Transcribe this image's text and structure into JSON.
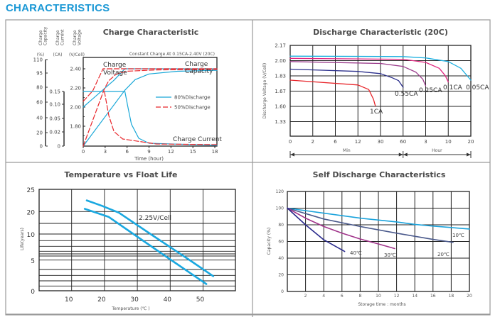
{
  "page": {
    "title": "CHARACTERISTICS",
    "accent": "#1b98d5"
  },
  "chart_data": [
    {
      "type": "line",
      "title": "Charge Characteristic",
      "annotation": "Constant Charge At 0.15CA-2.40V  (20C)",
      "xlabel": "Time (hour)",
      "xlim": [
        0,
        18.3
      ],
      "x_ticks": [
        0,
        3,
        6,
        9,
        12,
        15,
        18
      ],
      "axes": [
        {
          "id": "capacity",
          "header": "Charge Capacity",
          "unit": "(%)",
          "ticks": [
            110,
            95,
            80,
            60,
            40,
            20,
            0
          ]
        },
        {
          "id": "current",
          "header": "Charge Current",
          "unit": "(CA)",
          "ticks": [
            "0.15",
            "0.10",
            "0.05",
            "0.02",
            "0"
          ]
        },
        {
          "id": "voltage",
          "header": "Charge Voltage",
          "unit": "(V/Cell)",
          "ticks": [
            "2.40",
            "2.20",
            "2.00",
            "1.80"
          ]
        }
      ],
      "curve_labels": {
        "voltage": "Charge Voltage",
        "capacity": "Charge Capacity",
        "current": "Charge Current"
      },
      "legend": [
        {
          "name": "80%Discharge",
          "color": "#1aa8d8",
          "dash": false
        },
        {
          "name": "50%Discharge",
          "color": "#e8262b",
          "dash": true
        }
      ],
      "series": [
        {
          "group": "80%Discharge",
          "axis": "voltage",
          "points": [
            [
              0,
              2.0
            ],
            [
              2.7,
              2.18
            ],
            [
              4.2,
              2.28
            ],
            [
              5.7,
              2.4
            ],
            [
              18.3,
              2.4
            ]
          ]
        },
        {
          "group": "80%Discharge",
          "axis": "current",
          "points": [
            [
              0,
              0.15
            ],
            [
              5.7,
              0.15
            ],
            [
              6.1,
              0.092
            ],
            [
              6.6,
              0.037
            ],
            [
              7.6,
              0.011
            ],
            [
              9.0,
              0.004
            ],
            [
              18.3,
              0.001
            ]
          ]
        },
        {
          "group": "80%Discharge",
          "axis": "capacity",
          "points": [
            [
              0,
              0
            ],
            [
              5.7,
              76
            ],
            [
              7.1,
              88
            ],
            [
              9.0,
              94
            ],
            [
              12.9,
              97
            ],
            [
              18.3,
              98
            ]
          ]
        },
        {
          "group": "50%Discharge",
          "axis": "voltage",
          "points": [
            [
              0,
              2.06
            ],
            [
              1.3,
              2.17
            ],
            [
              2.7,
              2.4
            ],
            [
              18.3,
              2.4
            ]
          ]
        },
        {
          "group": "50%Discharge",
          "axis": "capacity",
          "points": [
            [
              0,
              0
            ],
            [
              2.9,
              78
            ],
            [
              3.5,
              87
            ],
            [
              4.5,
              93.7
            ],
            [
              5.8,
              97
            ],
            [
              10,
              98.5
            ],
            [
              18.3,
              99
            ]
          ]
        },
        {
          "group": "50%Discharge",
          "axis": "current",
          "points": [
            [
              2.9,
              0.15
            ],
            [
              3.5,
              0.06
            ],
            [
              4.2,
              0.021
            ],
            [
              5.4,
              0.01
            ],
            [
              10,
              0.003
            ],
            [
              18.3,
              0.002
            ]
          ]
        }
      ]
    },
    {
      "type": "line",
      "title": "Discharge Characteristic (20C)",
      "ylabel": "Discharge Voltage (V/Cell)",
      "x_tick_labels": [
        "0",
        "2",
        "6",
        "12",
        "30",
        "60",
        "3",
        "10",
        "20"
      ],
      "x_tick_minutes": [
        0,
        2,
        6,
        12,
        30,
        60,
        180,
        600,
        1200
      ],
      "x_ranges": [
        {
          "label": "Min"
        },
        {
          "label": "Hour"
        }
      ],
      "y_ticks": [
        "2.17",
        "2.00",
        "1.83",
        "1.67",
        "1.60",
        "1.33"
      ],
      "grid": true,
      "series": [
        {
          "name": "1CA",
          "color": "#e8262b",
          "points": [
            [
              0,
              1.785
            ],
            [
              12,
              1.735
            ],
            [
              20.6,
              1.687
            ],
            [
              24.4,
              1.633
            ],
            [
              25.9,
              1.602
            ]
          ]
        },
        {
          "name": "0.55CA",
          "color": "#2b2f8c",
          "points": [
            [
              0,
              1.905
            ],
            [
              12,
              1.88
            ],
            [
              30,
              1.855
            ],
            [
              45.6,
              1.81
            ],
            [
              54,
              1.78
            ],
            [
              60,
              1.71
            ]
          ]
        },
        {
          "name": "0.25CA",
          "color": "#9b3d8c",
          "points": [
            [
              0,
              1.99
            ],
            [
              30,
              1.968
            ],
            [
              60,
              1.935
            ],
            [
              127,
              1.873
            ],
            [
              165,
              1.795
            ],
            [
              180,
              1.725
            ]
          ]
        },
        {
          "name": "0.1CA",
          "color": "#e0257f",
          "points": [
            [
              0,
              2.025
            ],
            [
              60,
              2.015
            ],
            [
              180,
              1.98
            ],
            [
              433,
              1.915
            ],
            [
              543,
              1.835
            ],
            [
              600,
              1.765
            ]
          ]
        },
        {
          "name": "0.05CA",
          "color": "#1fb0e0",
          "points": [
            [
              0,
              2.05
            ],
            [
              60,
              2.045
            ],
            [
              180,
              2.03
            ],
            [
              600,
              1.99
            ],
            [
              935,
              1.915
            ],
            [
              1200,
              1.785
            ]
          ]
        }
      ]
    },
    {
      "type": "line",
      "title": "Temperature vs Float Life",
      "xlabel": "Temperature (℃ )",
      "ylabel": "Life(years)",
      "x_ticks": [
        10,
        20,
        30,
        40,
        50
      ],
      "y_ticks": [
        25,
        20,
        10,
        5,
        0
      ],
      "xlim": [
        1,
        61
      ],
      "annotation": "2.25V/Cell",
      "grid": true,
      "series": [
        {
          "color": "#1aa8e0",
          "points": [
            [
              14.6,
              22.5
            ],
            [
              19.2,
              21.3
            ],
            [
              24.4,
              19.5
            ],
            [
              34.0,
              10
            ],
            [
              46.0,
              5
            ],
            [
              53.1,
              2.4
            ]
          ]
        },
        {
          "color": "#1aa8e0",
          "points": [
            [
              14.0,
              20.6
            ],
            [
              21.3,
              17.6
            ],
            [
              28.8,
              10
            ],
            [
              40.4,
              5
            ],
            [
              51.0,
              1.1
            ]
          ]
        }
      ]
    },
    {
      "type": "line",
      "title": "Self Discharge Characteristics",
      "xlabel": "Storage time : months",
      "ylabel": "Capacity (%)",
      "x_ticks": [
        2,
        4,
        6,
        8,
        10,
        12,
        14,
        16,
        18,
        20
      ],
      "y_ticks": [
        120,
        100,
        80,
        60,
        40,
        20,
        0
      ],
      "xlim": [
        0,
        20
      ],
      "ylim": [
        0,
        120
      ],
      "grid": true,
      "series": [
        {
          "name": "10℃",
          "color": "#1ba3dc",
          "points": [
            [
              0,
              100
            ],
            [
              4,
              94
            ],
            [
              8,
              88
            ],
            [
              12,
              83.5
            ],
            [
              14,
              80.5
            ],
            [
              16,
              78.5
            ],
            [
              20,
              75
            ]
          ]
        },
        {
          "name": "20℃",
          "color": "#4b5a8c",
          "points": [
            [
              0,
              100
            ],
            [
              4,
              87
            ],
            [
              8,
              78
            ],
            [
              12,
              70
            ],
            [
              16,
              62.5
            ],
            [
              18.2,
              59
            ]
          ]
        },
        {
          "name": "30℃",
          "color": "#a0338a",
          "points": [
            [
              0,
              100
            ],
            [
              2,
              88
            ],
            [
              4,
              78
            ],
            [
              6,
              70
            ],
            [
              8,
              63
            ],
            [
              10,
              57
            ],
            [
              11.8,
              51.5
            ]
          ]
        },
        {
          "name": "40℃",
          "color": "#2a2a8c",
          "points": [
            [
              0,
              100
            ],
            [
              2,
              80
            ],
            [
              4,
              62
            ],
            [
              6.3,
              48
            ]
          ]
        }
      ]
    }
  ]
}
